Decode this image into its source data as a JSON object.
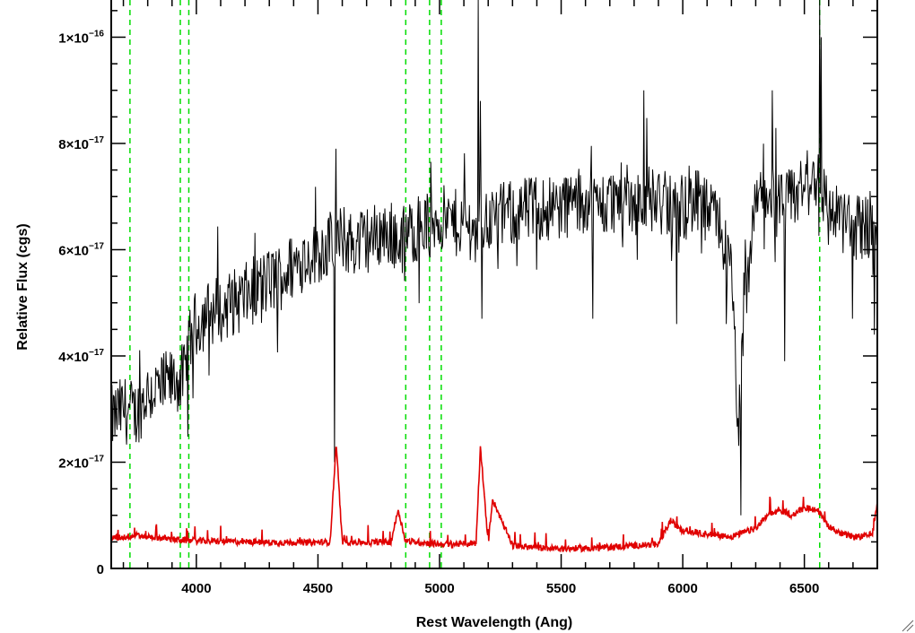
{
  "chart_data": {
    "type": "line",
    "title": "",
    "xlabel": "Rest Wavelength (Ang)",
    "ylabel": "Relative Flux (cgs)",
    "xlim": [
      3650,
      6800
    ],
    "ylim": [
      0,
      1.07e-16
    ],
    "x_ticks": [
      4000,
      4500,
      5000,
      5500,
      6000,
      6500
    ],
    "x_tick_labels": [
      "4000",
      "4500",
      "5000",
      "5500",
      "6000",
      "6500"
    ],
    "y_ticks": [
      {
        "value": 0,
        "mantissa": "0",
        "exponent": ""
      },
      {
        "value": 2e-17,
        "mantissa": "2×10",
        "exponent": "−17"
      },
      {
        "value": 4e-17,
        "mantissa": "4×10",
        "exponent": "−17"
      },
      {
        "value": 6e-17,
        "mantissa": "6×10",
        "exponent": "−17"
      },
      {
        "value": 8e-17,
        "mantissa": "8×10",
        "exponent": "−17"
      },
      {
        "value": 1e-16,
        "mantissa": "1×10",
        "exponent": "−16"
      }
    ],
    "vertical_lines": [
      3727,
      3934,
      3969,
      4861,
      4959,
      5007,
      6563
    ],
    "series": [
      {
        "color": "#000000",
        "x": [
          3650,
          3700,
          3750,
          3800,
          3850,
          3900,
          3950,
          3980,
          4000,
          4050,
          4100,
          4150,
          4200,
          4250,
          4300,
          4350,
          4400,
          4450,
          4500,
          4550,
          4600,
          4650,
          4700,
          4750,
          4800,
          4850,
          4900,
          4950,
          5000,
          5050,
          5100,
          5150,
          5200,
          5250,
          5300,
          5350,
          5400,
          5450,
          5500,
          5550,
          5600,
          5650,
          5700,
          5750,
          5800,
          5850,
          5900,
          5950,
          6000,
          6050,
          6100,
          6150,
          6200,
          6230,
          6260,
          6300,
          6350,
          6400,
          6450,
          6500,
          6550,
          6600,
          6650,
          6700,
          6750,
          6800
        ],
        "y": [
          2.8e-17,
          3e-17,
          2.9e-17,
          3.3e-17,
          3.4e-17,
          3.5e-17,
          3.6e-17,
          4.4e-17,
          4.6e-17,
          4.8e-17,
          4.9e-17,
          5e-17,
          5.1e-17,
          5.3e-17,
          5.4e-17,
          5.5e-17,
          5.7e-17,
          5.9e-17,
          6e-17,
          6.1e-17,
          6.2e-17,
          6.1e-17,
          6.2e-17,
          6.3e-17,
          6.3e-17,
          6.2e-17,
          6.4e-17,
          6.5e-17,
          6.6e-17,
          6.5e-17,
          6.5e-17,
          6.4e-17,
          6.6e-17,
          6.6e-17,
          6.7e-17,
          6.7e-17,
          6.8e-17,
          6.8e-17,
          6.8e-17,
          6.9e-17,
          6.9e-17,
          6.8e-17,
          6.9e-17,
          7e-17,
          6.9e-17,
          7e-17,
          6.9e-17,
          6.8e-17,
          6.8e-17,
          6.9e-17,
          6.7e-17,
          6.5e-17,
          5.5e-17,
          2.6e-17,
          5.2e-17,
          6.8e-17,
          7.1e-17,
          6.8e-17,
          6.9e-17,
          7.2e-17,
          7.4e-17,
          6.8e-17,
          6.6e-17,
          6.4e-17,
          6.5e-17,
          6.4e-17
        ],
        "spikes": [
          {
            "x": 4570,
            "y": 2e-17
          },
          {
            "x": 4575,
            "y": 7.9e-17
          },
          {
            "x": 5160,
            "y": 1.07e-16
          },
          {
            "x": 5170,
            "y": 8.8e-17
          },
          {
            "x": 5175,
            "y": 4.7e-17
          },
          {
            "x": 5630,
            "y": 4.7e-17
          },
          {
            "x": 5840,
            "y": 9e-17
          },
          {
            "x": 5975,
            "y": 4.6e-17
          },
          {
            "x": 6180,
            "y": 4.6e-17
          },
          {
            "x": 6240,
            "y": 1e-17
          },
          {
            "x": 6370,
            "y": 9e-17
          },
          {
            "x": 6420,
            "y": 3.9e-17
          },
          {
            "x": 6565,
            "y": 1.07e-16
          },
          {
            "x": 6570,
            "y": 1e-16
          },
          {
            "x": 6700,
            "y": 4.7e-17
          },
          {
            "x": 6790,
            "y": 4.4e-17
          }
        ]
      },
      {
        "color": "#e00000",
        "x": [
          3650,
          3700,
          3750,
          3800,
          3850,
          3900,
          3950,
          4000,
          4100,
          4200,
          4300,
          4400,
          4500,
          4550,
          4575,
          4600,
          4700,
          4800,
          4830,
          4860,
          4900,
          5000,
          5100,
          5150,
          5168,
          5200,
          5218,
          5300,
          5400,
          5500,
          5600,
          5700,
          5800,
          5900,
          5950,
          6000,
          6100,
          6200,
          6300,
          6350,
          6400,
          6450,
          6500,
          6550,
          6600,
          6650,
          6700,
          6750,
          6780,
          6800
        ],
        "y": [
          5.8e-18,
          5.9e-18,
          6.2e-18,
          6e-18,
          5.8e-18,
          5.5e-18,
          5.3e-18,
          5.2e-18,
          5.1e-18,
          5e-18,
          4.9e-18,
          4.9e-18,
          4.9e-18,
          5e-18,
          2.35e-17,
          5e-18,
          4.9e-18,
          5e-18,
          1.1e-17,
          5.2e-18,
          5e-18,
          4.6e-18,
          4.6e-18,
          4.8e-18,
          2.3e-17,
          4.8e-18,
          1.3e-17,
          4.3e-18,
          3.9e-18,
          3.7e-18,
          3.8e-18,
          4e-18,
          4.3e-18,
          4.6e-18,
          9e-18,
          7e-18,
          6.5e-18,
          6e-18,
          7.5e-18,
          1e-17,
          1.1e-17,
          1e-17,
          1.15e-17,
          1.1e-17,
          8e-18,
          6.5e-18,
          6e-18,
          6e-18,
          6.5e-18,
          1.25e-17
        ]
      }
    ]
  }
}
